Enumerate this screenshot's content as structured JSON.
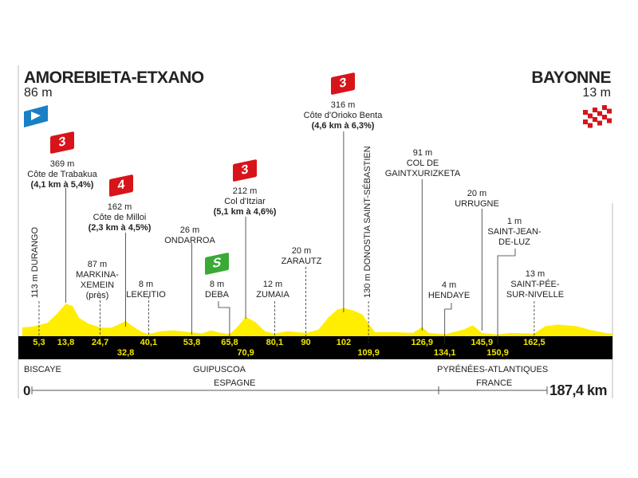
{
  "start": {
    "name": "AMOREBIETA-ETXANO",
    "elevation": "86 m"
  },
  "finish": {
    "name": "BAYONNE",
    "elevation": "13 m"
  },
  "colors": {
    "profile": "#ffee00",
    "band": "#000000",
    "km_text": "#f2e600",
    "cat3": "#d7141a",
    "cat4": "#d7141a",
    "sprint": "#3aa935",
    "start_flag": "#1a7fc4"
  },
  "waypoints": [
    {
      "km": 5.3,
      "text": "113 m DURANGO"
    },
    {
      "km": 13.8,
      "cat": "3",
      "elev": "369 m",
      "name": "Côte de Trabakua",
      "detail": "(4,1 km à 5,4%)"
    },
    {
      "km": 24.7,
      "elev": "87 m",
      "l1": "MARKINA-",
      "l2": "XEMEIN",
      "l3": "(près)"
    },
    {
      "km": 32.8,
      "cat": "4",
      "elev": "162 m",
      "name": "Côte de Milloi",
      "detail": "(2,3 km à 4,5%)"
    },
    {
      "km": 40.1,
      "elev": "8 m",
      "l1": "LEKEITIO"
    },
    {
      "km": 53.8,
      "elev": "26 m",
      "l1": "ONDARROA"
    },
    {
      "km": 65.8,
      "sprint": "S",
      "elev": "8 m",
      "l1": "DEBA"
    },
    {
      "km": 70.9,
      "cat": "3",
      "elev": "212 m",
      "name": "Col d'Itziar",
      "detail": "(5,1 km à 4,6%)"
    },
    {
      "km": 80.1,
      "elev": "12 m",
      "l1": "ZUMAIA"
    },
    {
      "km": 90,
      "elev": "20 m",
      "l1": "ZARAUTZ"
    },
    {
      "km": 102,
      "cat": "3",
      "elev": "316 m",
      "name": "Côte d'Orioko Benta",
      "detail": "(4,6 km à 6,3%)"
    },
    {
      "km": 109.9,
      "text": "130 m DONOSTIA SAINT-SÉBASTIEN"
    },
    {
      "km": 126.9,
      "elev": "91 m",
      "l1": "COL DE",
      "l2": "GAINTXURIZKETA"
    },
    {
      "km": 134.1,
      "elev": "4 m",
      "l1": "HENDAYE"
    },
    {
      "km": 145.9,
      "elev": "20 m",
      "l1": "URRUGNE"
    },
    {
      "km": 150.9,
      "elev": "1 m",
      "l1": "SAINT-JEAN-",
      "l2": "DE-LUZ"
    },
    {
      "km": 162.5,
      "elev": "13 m",
      "l1": "SAINT-PÉE-",
      "l2": "SUR-NIVELLE"
    }
  ],
  "km_marks": [
    "5,3",
    "13,8",
    "24,7",
    "32,8",
    "40,1",
    "53,8",
    "65,8",
    "70,9",
    "80,1",
    "90",
    "102",
    "109,9",
    "126,9",
    "134,1",
    "145,9",
    "150,9",
    "162,5"
  ],
  "regions": {
    "r1": "BISCAYE",
    "r2": "GUIPUSCOA",
    "r3": "PYRÉNÉES-ATLANTIQUES",
    "c1": "ESPAGNE",
    "c2": "FRANCE"
  },
  "distance": {
    "start": "0",
    "end": "187,4 km"
  },
  "chart_data": {
    "type": "area",
    "xlabel": "",
    "ylabel": "",
    "xlim": [
      0,
      187.4
    ],
    "x": [
      0,
      3,
      5.3,
      8,
      11,
      13.8,
      16,
      18,
      21,
      24.7,
      28,
      30,
      32.8,
      35,
      38,
      40.1,
      44,
      48,
      53.8,
      57,
      60,
      63,
      65.8,
      68,
      70.9,
      74,
      77,
      80.1,
      84,
      90,
      94,
      97,
      100,
      102,
      105,
      108,
      109.9,
      112,
      118,
      124,
      126.9,
      129,
      134.1,
      140,
      143,
      145.9,
      150.9,
      155,
      162.5,
      166,
      170,
      176,
      180,
      185,
      187.4
    ],
    "y": [
      86,
      95,
      113,
      140,
      250,
      369,
      340,
      200,
      130,
      87,
      80,
      110,
      162,
      100,
      30,
      8,
      40,
      50,
      26,
      15,
      50,
      20,
      8,
      80,
      212,
      150,
      40,
      12,
      40,
      20,
      60,
      200,
      300,
      316,
      290,
      240,
      130,
      30,
      30,
      20,
      91,
      20,
      4,
      60,
      110,
      20,
      1,
      20,
      13,
      100,
      120,
      100,
      60,
      20,
      13
    ]
  }
}
